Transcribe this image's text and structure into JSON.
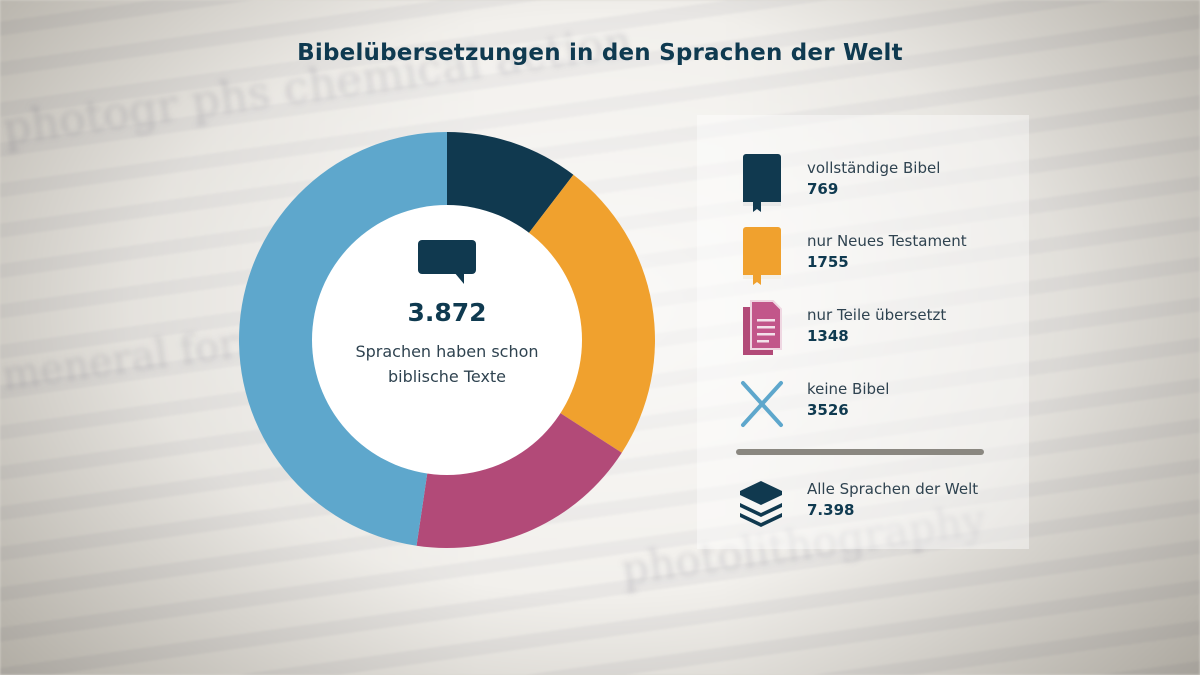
{
  "title": "Bibelübersetzungen in den Sprachen der Welt",
  "center": {
    "value": "3.872",
    "text": "Sprachen haben schon\nbiblische Texte",
    "icon": "speech-bubble-icon"
  },
  "legend": [
    {
      "label": "vollständige Bibel",
      "value": "769",
      "icon": "book-icon",
      "color": "#10394f"
    },
    {
      "label": "nur Neues Testament",
      "value": "1755",
      "icon": "book-icon",
      "color": "#f0a12e"
    },
    {
      "label": "nur Teile übersetzt",
      "value": "1348",
      "icon": "documents-icon",
      "color": "#b24a78"
    },
    {
      "label": "keine Bibel",
      "value": "3526",
      "icon": "x-icon",
      "color": "#5ea7cc"
    }
  ],
  "total": {
    "label": "Alle Sprachen der Welt",
    "value": "7.398",
    "icon": "layers-icon",
    "color": "#10394f"
  },
  "chart_data": {
    "type": "pie",
    "categories": [
      "vollständige Bibel",
      "nur Neues Testament",
      "nur Teile übersetzt",
      "keine Bibel"
    ],
    "values": [
      769,
      1755,
      1348,
      3526
    ],
    "colors": [
      "#10394f",
      "#f0a12e",
      "#b24a78",
      "#5ea7cc"
    ]
  }
}
